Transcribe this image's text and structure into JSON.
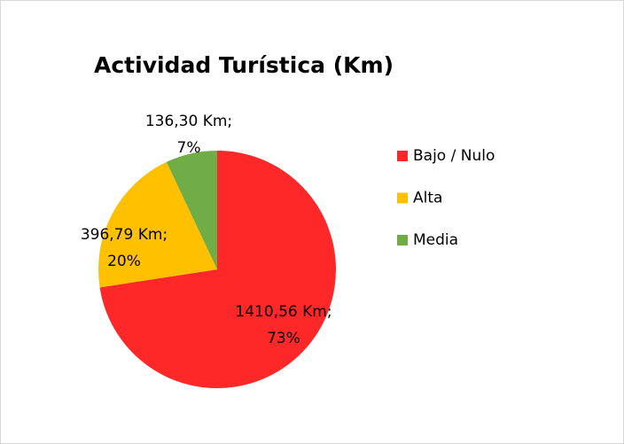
{
  "chart_data": {
    "type": "pie",
    "title": "Actividad Turística (Km)",
    "categories": [
      "Bajo / Nulo",
      "Alta",
      "Media"
    ],
    "values": [
      1410.56,
      396.79,
      136.3
    ],
    "value_labels": [
      [
        "1410,56 Km;",
        "73%"
      ],
      [
        "396,79 Km;",
        "20%"
      ],
      [
        "136,30 Km;",
        "7%"
      ]
    ],
    "colors": [
      "#ff2828",
      "#ffc000",
      "#70ad47"
    ],
    "legend": "right"
  }
}
